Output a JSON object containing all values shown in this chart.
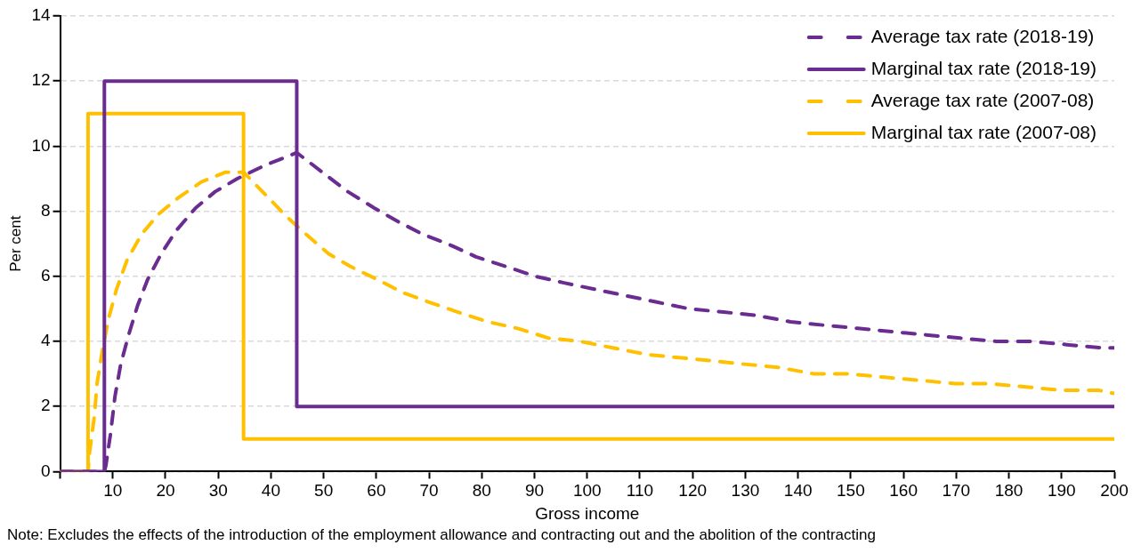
{
  "chart_data": {
    "type": "line",
    "xlabel": "Gross income",
    "ylabel": "Per cent",
    "xlim": [
      0,
      200
    ],
    "ylim": [
      0,
      14
    ],
    "xticks": [
      {
        "value": 0,
        "label": null
      },
      10,
      20,
      30,
      40,
      50,
      60,
      70,
      80,
      90,
      100,
      110,
      120,
      130,
      140,
      150,
      160,
      170,
      180,
      190,
      200
    ],
    "yticks": [
      0,
      2,
      4,
      6,
      8,
      10,
      12,
      14
    ],
    "grid": "y",
    "legend": "top right",
    "annotations": [
      "Note: Excludes the effects of the introduction of the employment allowance and contracting out and the abolition of the contracting"
    ],
    "series": [
      {
        "name": "Average tax rate (2018-19)",
        "color": "#6b2c91",
        "line_style": "dashed",
        "x": [
          0,
          8.4,
          8.7,
          9.6,
          10.4,
          11.5,
          13.0,
          14.7,
          16.6,
          19.2,
          22.0,
          25.7,
          29.4,
          33.6,
          38.7,
          44.9,
          54.6,
          59.6,
          63.9,
          68.7,
          73.5,
          78.9,
          84.6,
          90.2,
          95.6,
          101.5,
          107.5,
          113.4,
          119.4,
          125.9,
          132.1,
          138.6,
          144.8,
          151.3,
          157.8,
          164.3,
          170.8,
          177.6,
          184.2,
          191.0,
          197.7,
          200
        ],
        "values": [
          0,
          0,
          0.2,
          1.2,
          2.3,
          3.3,
          4.2,
          5.1,
          5.9,
          6.7,
          7.4,
          8.1,
          8.6,
          9.0,
          9.4,
          9.8,
          8.6,
          8.1,
          7.7,
          7.3,
          7.0,
          6.6,
          6.3,
          6.0,
          5.8,
          5.6,
          5.4,
          5.2,
          5.0,
          4.9,
          4.8,
          4.6,
          4.5,
          4.4,
          4.3,
          4.2,
          4.1,
          4.0,
          4.0,
          3.9,
          3.8,
          3.8
        ]
      },
      {
        "name": "Marginal tax rate (2018-19)",
        "type": "step",
        "color": "#6b2c91",
        "x": [
          0,
          8.4,
          44.9,
          200
        ],
        "values": [
          0,
          12,
          2,
          2
        ]
      },
      {
        "name": "Average tax rate (2007-08)",
        "color": "#ffc000",
        "line_style": "dashed",
        "x": [
          0,
          5.3,
          5.6,
          6.5,
          7.0,
          8.0,
          9.2,
          10.7,
          12.7,
          15.5,
          18.6,
          22.3,
          26.8,
          31.4,
          34.8,
          39.6,
          43.2,
          46.6,
          50.9,
          55.1,
          60.2,
          65.0,
          70.1,
          75.5,
          81.2,
          86.8,
          92.7,
          98.7,
          104.9,
          111.2,
          117.4,
          123.9,
          129.8,
          136.3,
          143.1,
          149.6,
          156.4,
          163.2,
          170.0,
          176.5,
          183.3,
          189.8,
          196.9,
          200
        ],
        "values": [
          0,
          0,
          0.6,
          1.7,
          2.7,
          3.7,
          4.7,
          5.6,
          6.5,
          7.3,
          7.9,
          8.4,
          8.9,
          9.2,
          9.2,
          8.4,
          7.8,
          7.3,
          6.7,
          6.3,
          5.9,
          5.5,
          5.2,
          4.9,
          4.6,
          4.4,
          4.1,
          4.0,
          3.8,
          3.6,
          3.5,
          3.4,
          3.3,
          3.2,
          3.0,
          3.0,
          2.9,
          2.8,
          2.7,
          2.7,
          2.6,
          2.5,
          2.5,
          2.4
        ]
      },
      {
        "name": "Marginal tax rate (2007-08)",
        "type": "step",
        "color": "#ffc000",
        "x": [
          0,
          5.3,
          34.8,
          200
        ],
        "values": [
          0,
          11,
          1,
          1
        ]
      }
    ]
  }
}
